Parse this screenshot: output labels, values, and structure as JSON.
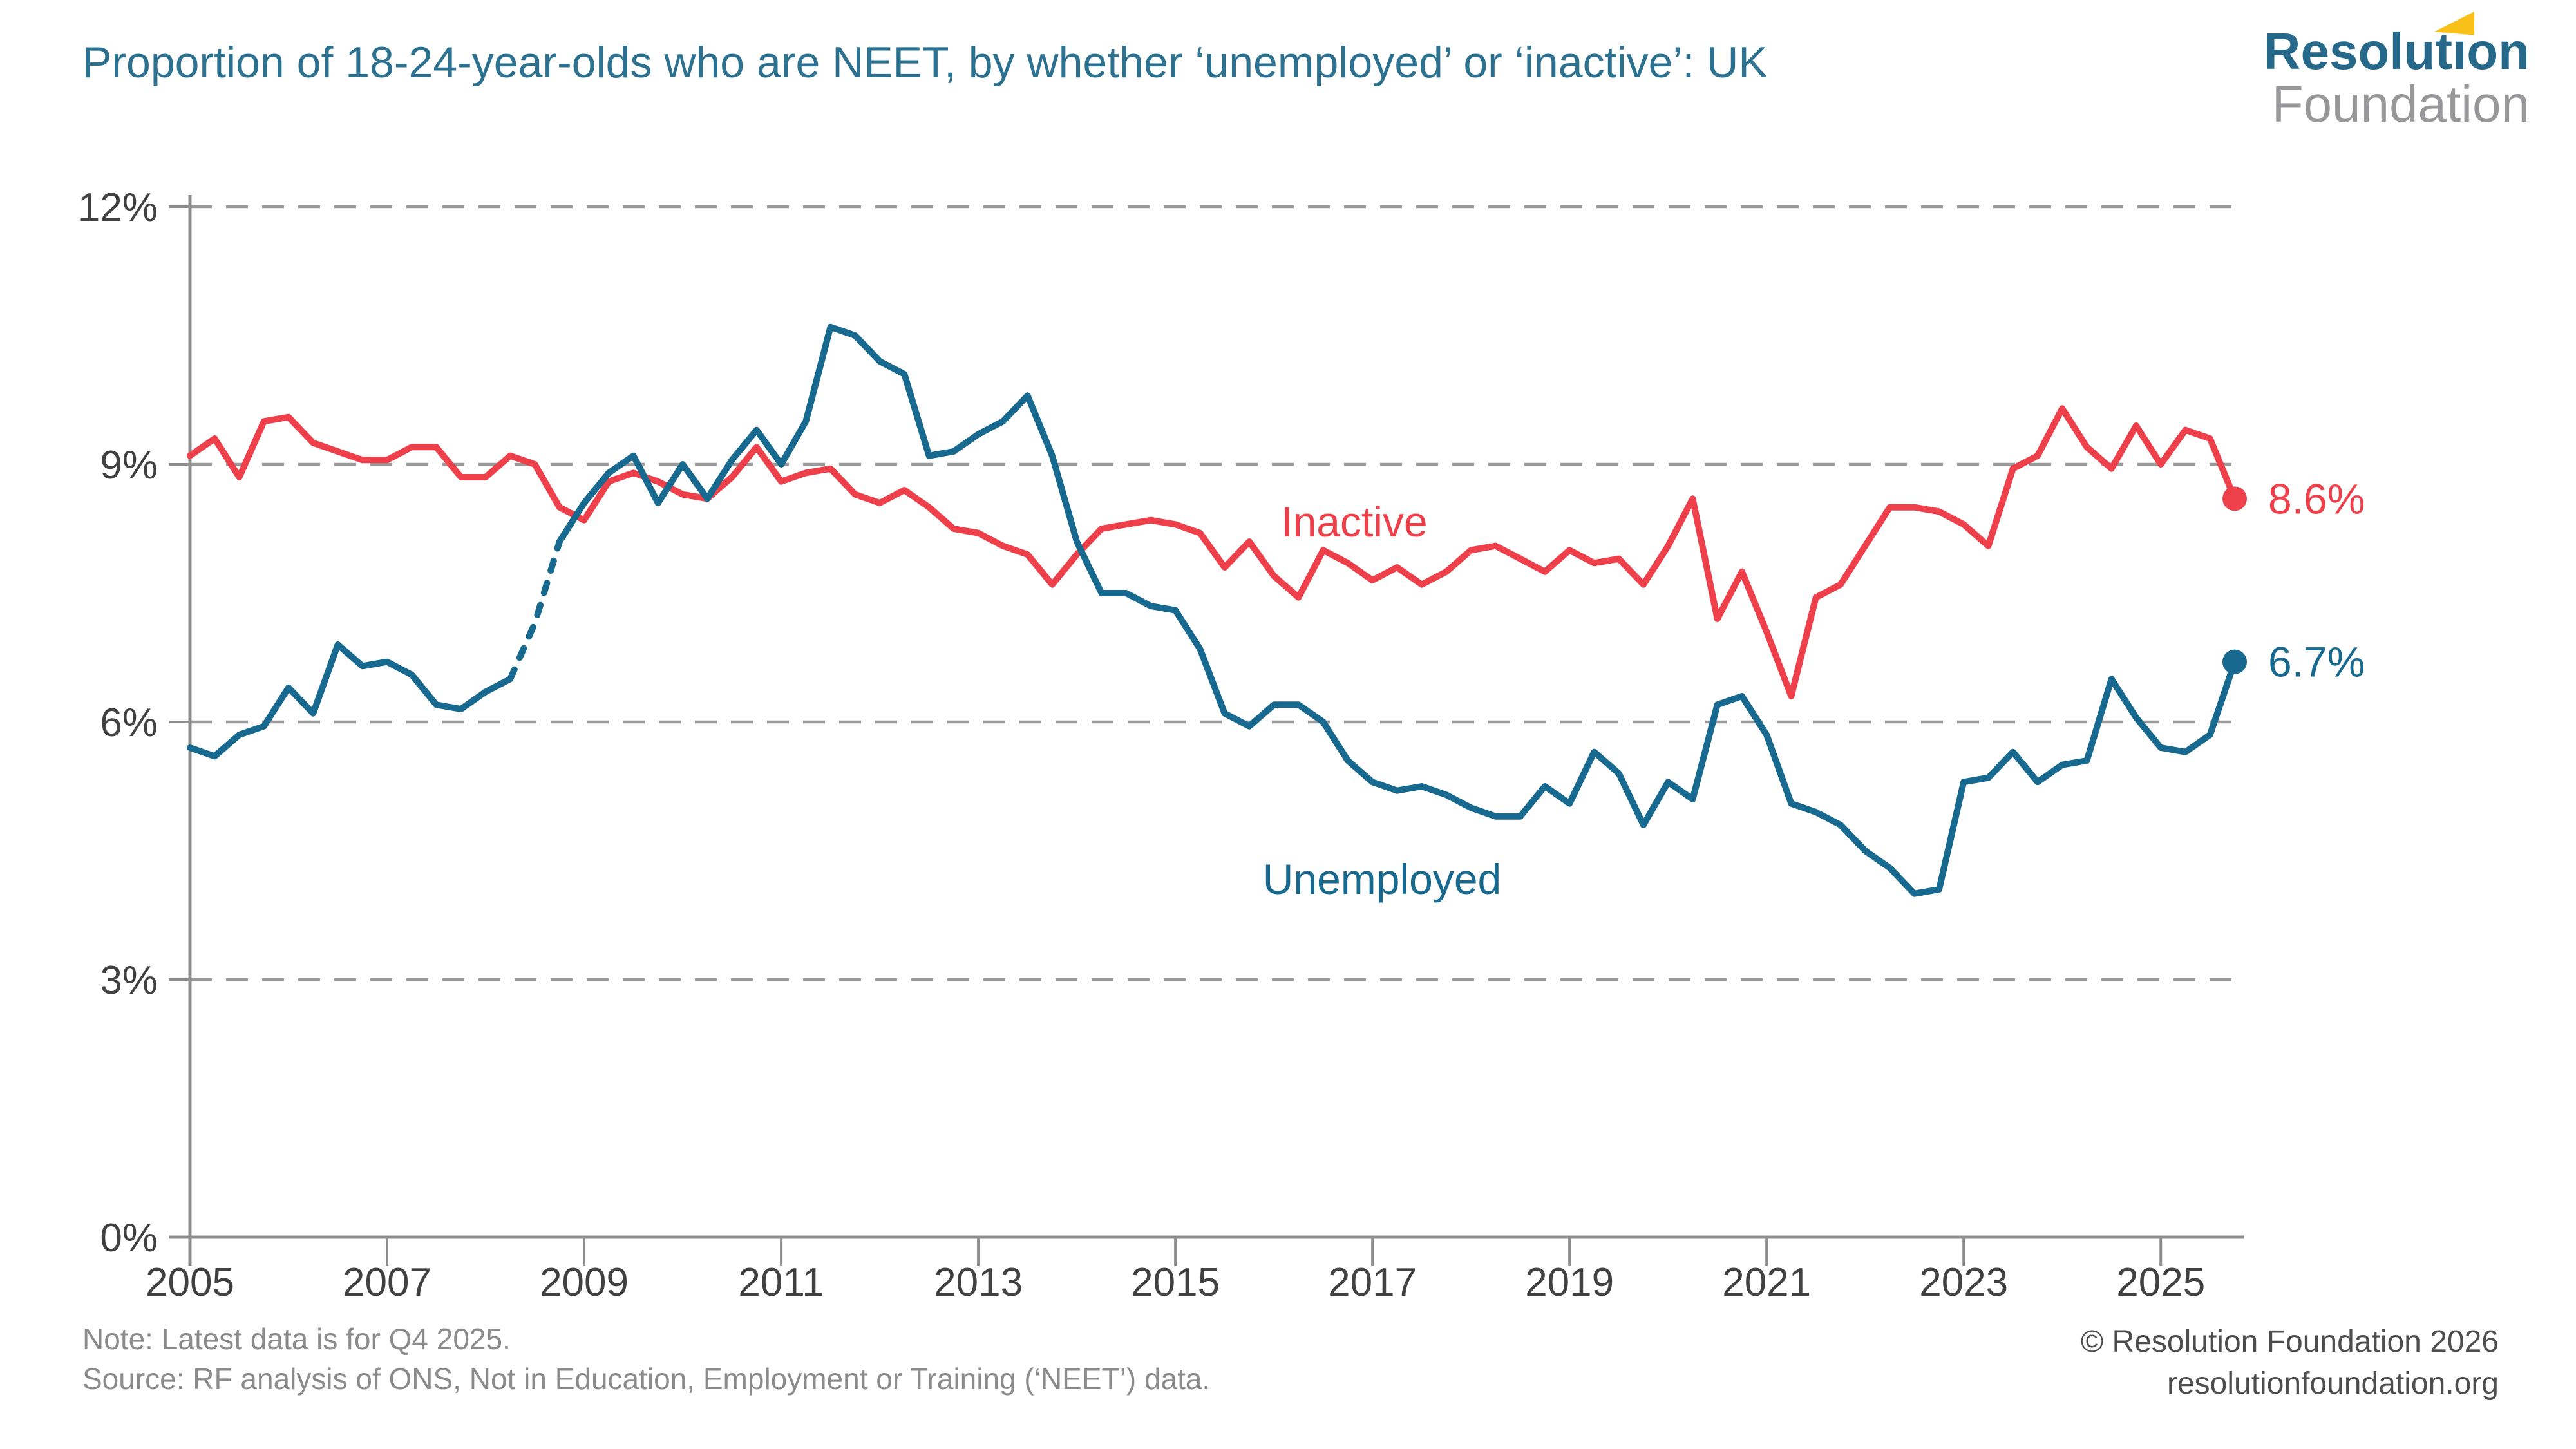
{
  "header": {
    "title": "Proportion of 18-24-year-olds who are NEET, by whether ‘unemployed’ or ‘inactive’: UK",
    "logo": {
      "line1": "Resolution",
      "line2": "Foundation"
    }
  },
  "footer": {
    "note": "Note: Latest data is for Q4 2025.",
    "source": "Source: RF analysis of ONS, Not in Education, Employment or Training (‘NEET’) data.",
    "copyright": "© Resolution Foundation 2026",
    "website": "resolutionfoundation.org"
  },
  "chart_data": {
    "type": "line",
    "title": "Proportion of 18-24-year-olds who are NEET, by whether ‘unemployed’ or ‘inactive’: UK",
    "x_frequency": "quarterly",
    "x_start": "2005 Q1",
    "x_end": "2025 Q4",
    "x_tick_years": [
      2005,
      2007,
      2009,
      2011,
      2013,
      2015,
      2017,
      2019,
      2021,
      2023,
      2025
    ],
    "ylim": [
      0,
      12
    ],
    "y_ticks": [
      {
        "value": 0,
        "label": "0%"
      },
      {
        "value": 3,
        "label": "3%"
      },
      {
        "value": 6,
        "label": "6%"
      },
      {
        "value": 9,
        "label": "9%"
      },
      {
        "value": 12,
        "label": "12%"
      }
    ],
    "grid": "horizontal-dashed",
    "legend_position": "inline-annotations",
    "colors": {
      "grid": "#9a9a9a",
      "axis": "#8c8c8c",
      "tick_text": "#414141"
    },
    "series": [
      {
        "name": "Inactive",
        "color": "#ee404b",
        "end_label": "8.6%",
        "end_value": 8.6,
        "values": [
          9.1,
          9.3,
          8.85,
          9.5,
          9.55,
          9.25,
          9.15,
          9.05,
          9.05,
          9.2,
          9.2,
          8.85,
          8.85,
          9.1,
          9.0,
          8.5,
          8.35,
          8.8,
          8.9,
          8.8,
          8.65,
          8.6,
          8.85,
          9.2,
          8.8,
          8.9,
          8.95,
          8.65,
          8.55,
          8.7,
          8.5,
          8.25,
          8.2,
          8.05,
          7.95,
          7.6,
          7.95,
          8.25,
          8.3,
          8.35,
          8.3,
          8.2,
          7.8,
          8.1,
          7.7,
          7.45,
          8.0,
          7.85,
          7.65,
          7.8,
          7.6,
          7.75,
          8.0,
          8.05,
          7.9,
          7.75,
          8.0,
          7.85,
          7.9,
          7.6,
          8.05,
          8.6,
          7.2,
          7.75,
          7.05,
          6.3,
          7.45,
          7.6,
          8.05,
          8.5,
          8.5,
          8.45,
          8.3,
          8.05,
          8.95,
          9.1,
          9.65,
          9.2,
          8.95,
          9.45,
          9.0,
          9.4,
          9.3,
          8.6
        ]
      },
      {
        "name": "Unemployed",
        "color": "#17698f",
        "end_label": "6.7%",
        "end_value": 6.7,
        "dash_from": 13,
        "dash_to": 15,
        "values": [
          5.7,
          5.6,
          5.85,
          5.95,
          6.4,
          6.1,
          6.9,
          6.65,
          6.7,
          6.55,
          6.2,
          6.15,
          6.35,
          6.5,
          7.15,
          8.1,
          8.55,
          8.9,
          9.1,
          8.55,
          9.0,
          8.6,
          9.05,
          9.4,
          9.0,
          9.5,
          10.6,
          10.5,
          10.2,
          10.05,
          9.1,
          9.15,
          9.35,
          9.5,
          9.8,
          9.1,
          8.1,
          7.5,
          7.5,
          7.35,
          7.3,
          6.85,
          6.1,
          5.95,
          6.2,
          6.2,
          6.0,
          5.55,
          5.3,
          5.2,
          5.25,
          5.15,
          5.0,
          4.9,
          4.9,
          5.25,
          5.05,
          5.65,
          5.4,
          4.8,
          5.3,
          5.1,
          6.2,
          6.3,
          5.85,
          5.05,
          4.95,
          4.8,
          4.5,
          4.3,
          4.0,
          4.05,
          5.3,
          5.35,
          5.65,
          5.3,
          5.5,
          5.55,
          6.5,
          6.05,
          5.7,
          5.65,
          5.85,
          6.7
        ]
      }
    ],
    "annotations": [
      {
        "text": "Inactive",
        "series": "Inactive",
        "color": "#ee404b"
      },
      {
        "text": "Unemployed",
        "series": "Unemployed",
        "color": "#17698f"
      }
    ]
  }
}
